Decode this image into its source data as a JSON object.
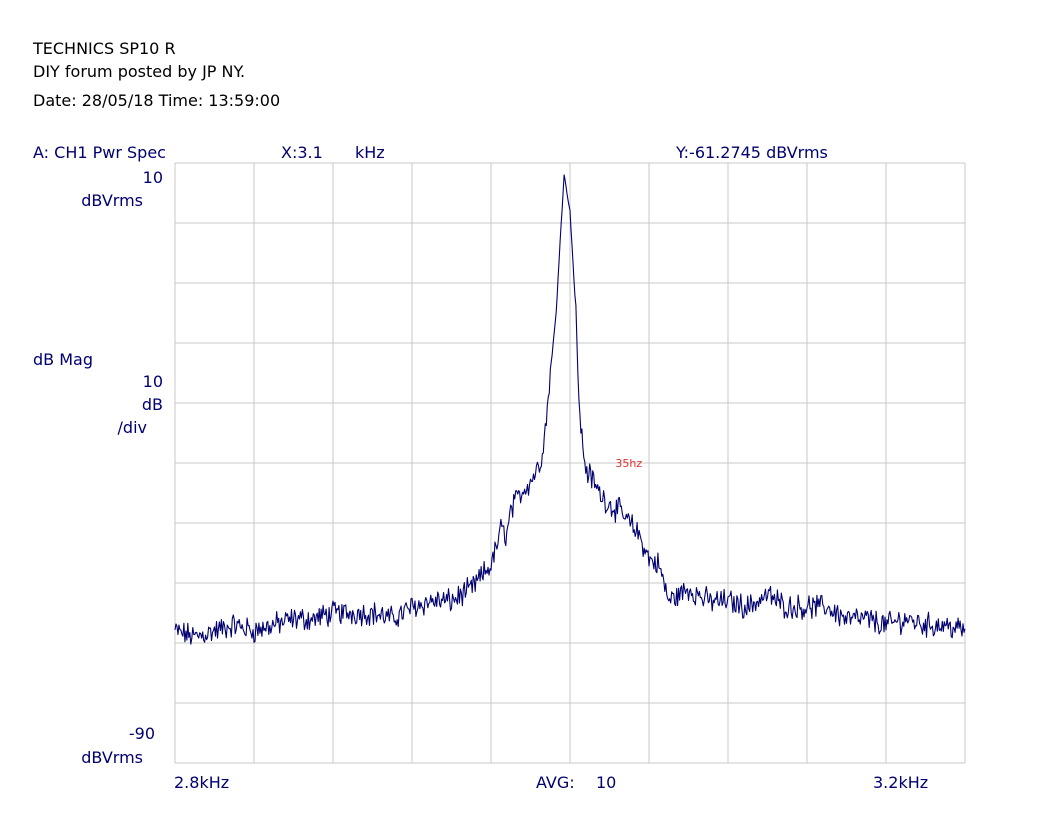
{
  "header": {
    "title": "TECHNICS SP10 R",
    "subtitle": "DIY forum posted by JP NY.",
    "date_line": "Date: 28/05/18  Time: 13:59:00"
  },
  "readout": {
    "trace_label": "A:  CH1 Pwr Spec",
    "x_label": "X:3.1",
    "x_unit": "kHz",
    "y_value": "Y:-61.2745 dBVrms"
  },
  "y_axis": {
    "top_value": "10",
    "top_unit": "dBVrms",
    "mode": "dB Mag",
    "scale_value": "10",
    "scale_unit": "dB",
    "scale_per": "/div",
    "bottom_value": "-90",
    "bottom_unit": "dBVrms"
  },
  "x_axis": {
    "start": "2.8kHz",
    "end": "3.2kHz"
  },
  "footer": {
    "avg_label": "AVG:",
    "avg_value": "10"
  },
  "colors": {
    "trace": "#000070",
    "grid": "#c8c8c8",
    "annotation": "#e03030"
  },
  "chart_data": {
    "type": "line",
    "title": "A:  CH1 Pwr Spec",
    "xlabel": "kHz",
    "ylabel": "dBVrms",
    "xlim": [
      2.8,
      3.2
    ],
    "ylim": [
      -90,
      10
    ],
    "grid": true,
    "x_divisions": 10,
    "y_divisions": 10,
    "annotations": [
      {
        "text": "35hz",
        "x": 3.023,
        "y": -40
      }
    ],
    "series": [
      {
        "x": [
          2.8,
          2.81,
          2.82,
          2.83,
          2.84,
          2.85,
          2.86,
          2.87,
          2.88,
          2.89,
          2.9,
          2.91,
          2.92,
          2.93,
          2.94,
          2.95,
          2.96,
          2.962,
          2.965,
          2.968,
          2.97,
          2.975,
          2.98,
          2.985,
          2.988,
          2.99,
          2.993,
          2.995,
          2.997,
          3.0,
          3.003,
          3.005,
          3.008,
          3.01,
          3.015,
          3.02,
          3.025,
          3.03,
          3.035,
          3.04,
          3.045,
          3.05,
          3.06,
          3.07,
          3.08,
          3.09,
          3.1,
          3.11,
          3.12,
          3.13,
          3.14,
          3.15,
          3.16,
          3.17,
          3.18,
          3.19,
          3.2
        ],
        "y": [
          -68,
          -69,
          -68,
          -67,
          -68,
          -67,
          -66,
          -66,
          -65,
          -65,
          -65,
          -66,
          -64,
          -63,
          -63,
          -61,
          -57,
          -55,
          -51,
          -52,
          -48,
          -45,
          -43,
          -40,
          -33,
          -25,
          -15,
          -3,
          8,
          2,
          -15,
          -33,
          -41,
          -42,
          -45,
          -47,
          -48,
          -50,
          -52,
          -56,
          -57,
          -63,
          -61,
          -63,
          -63,
          -64,
          -62,
          -64,
          -64,
          -64,
          -66,
          -66,
          -67,
          -66,
          -67,
          -67,
          -68
        ]
      }
    ]
  }
}
